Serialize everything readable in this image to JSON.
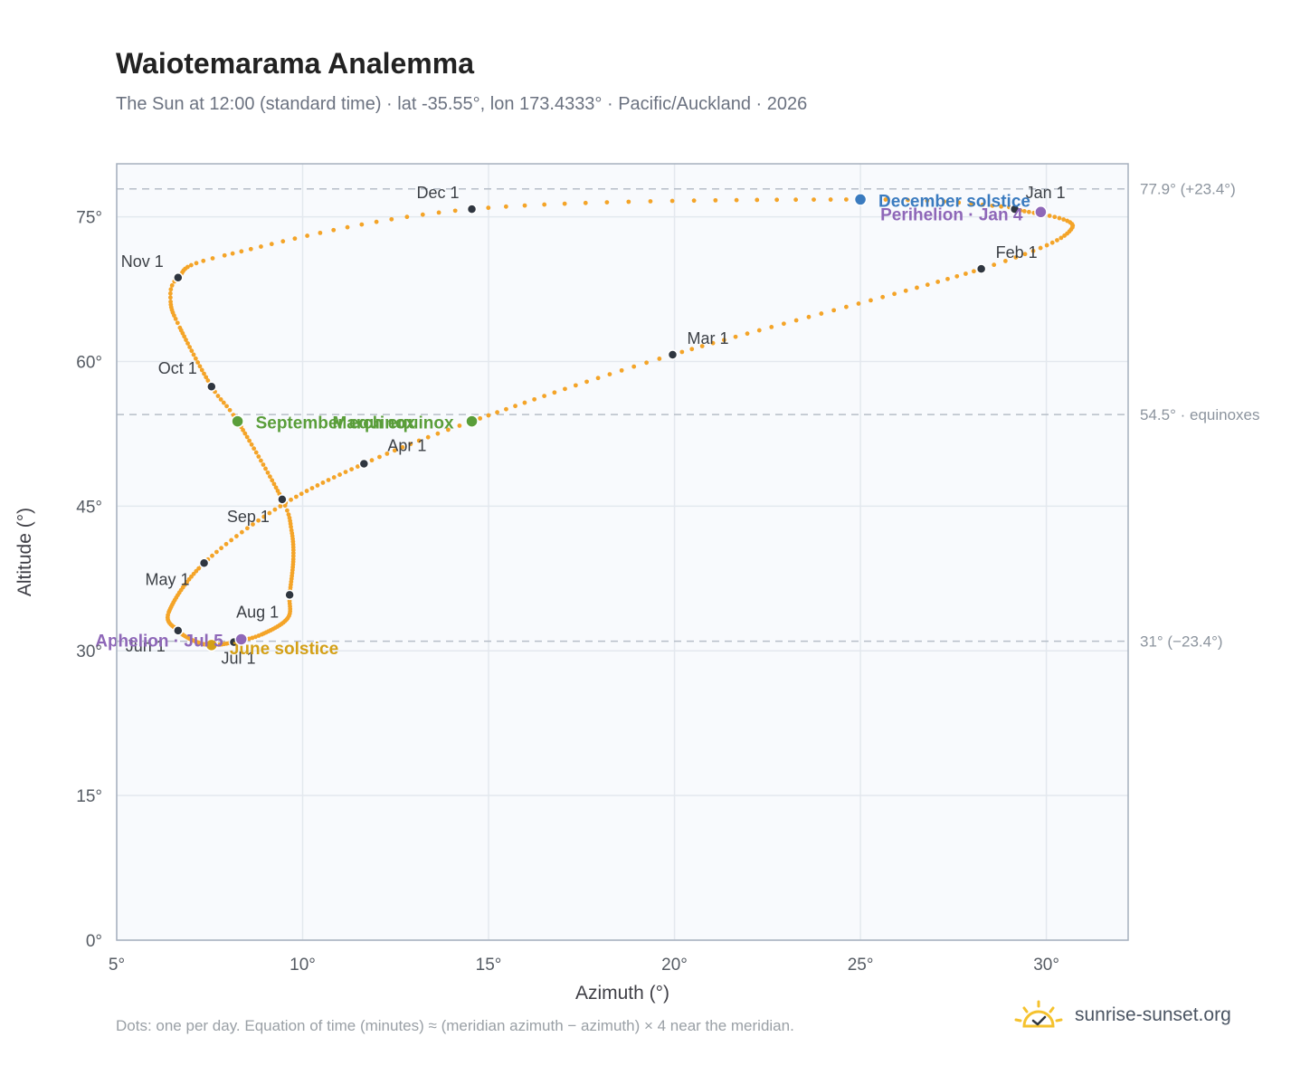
{
  "header": {
    "title": "Waiotemarama Analemma",
    "subtitle": "The Sun at 12:00 (standard time) · lat -35.55°, lon 173.4333° · Pacific/Auckland · 2026"
  },
  "footer": {
    "note": "Dots: one per day. Equation of time (minutes) ≈ (meridian azimuth − azimuth) × 4 near the meridian.",
    "brand": "sunrise-sunset.org"
  },
  "colors": {
    "curve": "#f4a428",
    "month_marker": "#2f3640",
    "equinox": "#5a9e3a",
    "december_solstice": "#3a7bbf",
    "june_solstice": "#d4a017",
    "apsis": "#8e67b8",
    "plot_background": "#f8fafd",
    "grid": "#e3e8ee",
    "reference_line": "#b6bec8"
  },
  "chart_data": {
    "type": "scatter",
    "xlabel": "Azimuth (°)",
    "ylabel": "Altitude (°)",
    "xlim": [
      5,
      32.2
    ],
    "ylim": [
      0,
      80.5
    ],
    "x_ticks": [
      5,
      10,
      15,
      20,
      25,
      30
    ],
    "x_tick_labels": [
      "5°",
      "10°",
      "15°",
      "20°",
      "25°",
      "30°"
    ],
    "y_ticks": [
      0,
      15,
      30,
      45,
      60,
      75
    ],
    "y_tick_labels": [
      "0°",
      "15°",
      "30°",
      "45°",
      "60°",
      "75°"
    ],
    "grid": true,
    "monthly_points": [
      {
        "label": "Jan 1",
        "x": 29.15,
        "y": 75.8
      },
      {
        "label": "Feb 1",
        "x": 28.25,
        "y": 69.6
      },
      {
        "label": "Mar 1",
        "x": 19.95,
        "y": 60.7
      },
      {
        "label": "Apr 1",
        "x": 11.65,
        "y": 49.4
      },
      {
        "label": "May 1",
        "x": 7.35,
        "y": 39.1
      },
      {
        "label": "Jun 1",
        "x": 6.65,
        "y": 32.1
      },
      {
        "label": "Jul 1",
        "x": 8.15,
        "y": 30.9
      },
      {
        "label": "Aug 1",
        "x": 9.65,
        "y": 35.8
      },
      {
        "label": "Sep 1",
        "x": 9.45,
        "y": 45.7
      },
      {
        "label": "Oct 1",
        "x": 7.55,
        "y": 57.4
      },
      {
        "label": "Nov 1",
        "x": 6.65,
        "y": 68.7
      },
      {
        "label": "Dec 1",
        "x": 14.55,
        "y": 75.8
      }
    ],
    "events": [
      {
        "label": "December solstice",
        "x": 25.0,
        "y": 76.8,
        "color_key": "december_solstice"
      },
      {
        "label": "Perihelion · Jan 4",
        "x": 29.85,
        "y": 75.5,
        "color_key": "apsis"
      },
      {
        "label": "March equinox",
        "x": 14.55,
        "y": 53.8,
        "color_key": "equinox"
      },
      {
        "label": "September equinox",
        "x": 8.25,
        "y": 53.8,
        "color_key": "equinox"
      },
      {
        "label": "June solstice",
        "x": 7.55,
        "y": 30.6,
        "color_key": "june_solstice"
      },
      {
        "label": "Aphelion · Jul 5",
        "x": 8.35,
        "y": 31.2,
        "color_key": "apsis"
      }
    ],
    "reference_lines": [
      {
        "y": 77.9,
        "label": "77.9° (+23.4°)"
      },
      {
        "y": 54.5,
        "label": "54.5° · equinoxes"
      },
      {
        "y": 31.0,
        "label": "31° (−23.4°)"
      }
    ],
    "curve_day_markers": [
      {
        "day": 0,
        "x": 29.15,
        "y": 75.8
      },
      {
        "day": 16,
        "x": 30.7,
        "y": 73.9
      },
      {
        "day": 31,
        "x": 28.25,
        "y": 69.6
      },
      {
        "day": 59,
        "x": 19.95,
        "y": 60.7
      },
      {
        "day": 78,
        "x": 14.55,
        "y": 53.8
      },
      {
        "day": 90,
        "x": 11.65,
        "y": 49.4
      },
      {
        "day": 105,
        "x": 9.4,
        "y": 45.0
      },
      {
        "day": 120,
        "x": 7.35,
        "y": 39.1
      },
      {
        "day": 140,
        "x": 6.4,
        "y": 34.0
      },
      {
        "day": 151,
        "x": 6.65,
        "y": 32.1
      },
      {
        "day": 160,
        "x": 7.1,
        "y": 31.0
      },
      {
        "day": 171,
        "x": 7.55,
        "y": 30.6
      },
      {
        "day": 181,
        "x": 8.15,
        "y": 30.9
      },
      {
        "day": 190,
        "x": 8.9,
        "y": 31.7
      },
      {
        "day": 203,
        "x": 9.6,
        "y": 33.4
      },
      {
        "day": 212,
        "x": 9.65,
        "y": 35.8
      },
      {
        "day": 225,
        "x": 9.75,
        "y": 39.5
      },
      {
        "day": 235,
        "x": 9.7,
        "y": 42.5
      },
      {
        "day": 243,
        "x": 9.45,
        "y": 45.7
      },
      {
        "day": 265,
        "x": 8.25,
        "y": 53.8
      },
      {
        "day": 273,
        "x": 7.55,
        "y": 57.4
      },
      {
        "day": 290,
        "x": 6.7,
        "y": 63.5
      },
      {
        "day": 298,
        "x": 6.45,
        "y": 66.2
      },
      {
        "day": 304,
        "x": 6.65,
        "y": 68.7
      },
      {
        "day": 315,
        "x": 7.9,
        "y": 71.0
      },
      {
        "day": 334,
        "x": 14.55,
        "y": 75.8
      },
      {
        "day": 354,
        "x": 25.0,
        "y": 76.8
      },
      {
        "day": 364,
        "x": 29.0,
        "y": 76.0
      }
    ]
  }
}
